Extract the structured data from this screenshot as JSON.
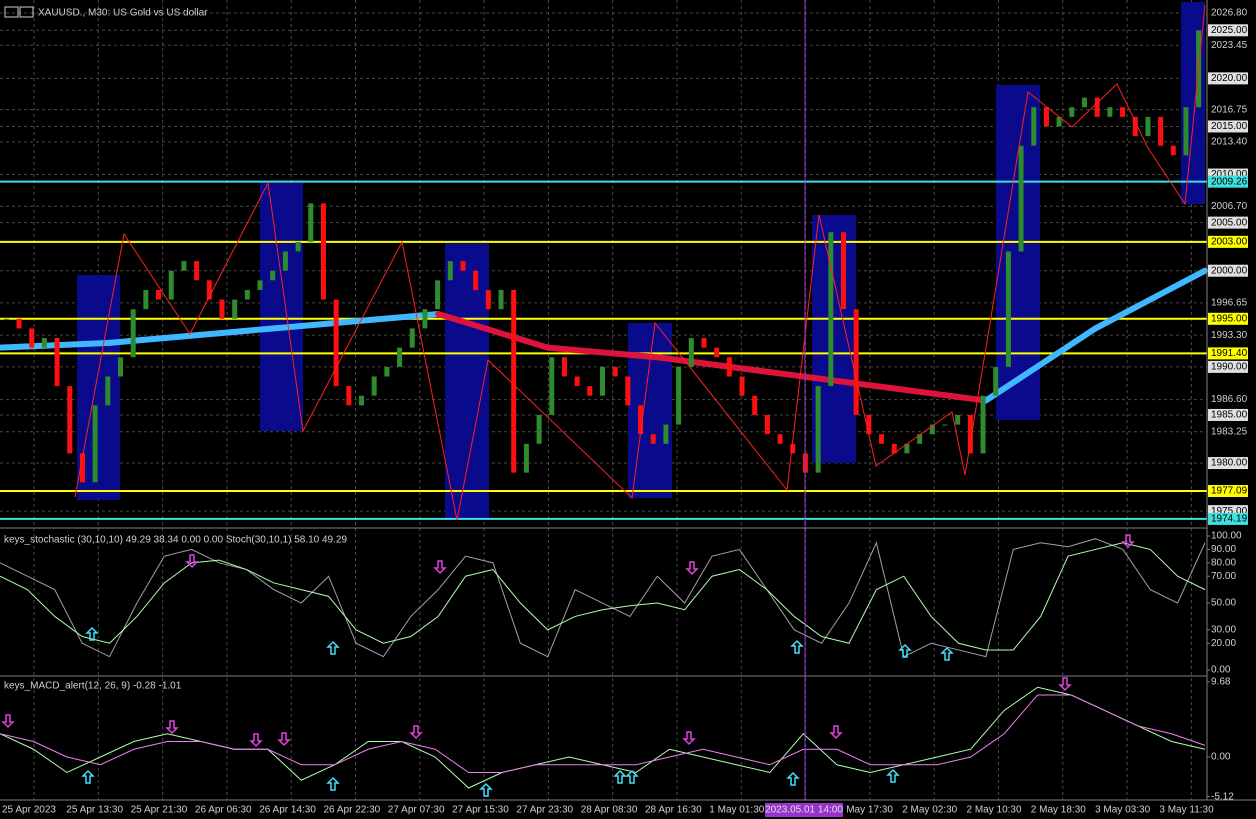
{
  "chart_data": [
    {
      "type": "candlestick",
      "title": "XAUUSD., M30: US Gold vs US dollar",
      "ylim": [
        1973.35,
        2028.15
      ],
      "yticks": [
        {
          "value": 2026.8,
          "label": "2026.80"
        },
        {
          "value": 2023.45,
          "label": "2023.45"
        },
        {
          "value": 2016.75,
          "label": "2016.75"
        },
        {
          "value": 2013.4,
          "label": "2013.40"
        },
        {
          "value": 2006.7,
          "label": "2006.70"
        },
        {
          "value": 1996.65,
          "label": "1996.65"
        },
        {
          "value": 1993.3,
          "label": "1993.30"
        },
        {
          "value": 1986.6,
          "label": "1986.60"
        },
        {
          "value": 1983.25,
          "label": "1983.25"
        }
      ],
      "boxed_ticks": [
        {
          "value": 2025,
          "label": "2025.00"
        },
        {
          "value": 2020,
          "label": "2020.00"
        },
        {
          "value": 2015,
          "label": "2015.00"
        },
        {
          "value": 2010,
          "label": "2010.00"
        },
        {
          "value": 2005,
          "label": "2005.00"
        },
        {
          "value": 2000,
          "label": "2000.00"
        },
        {
          "value": 1990,
          "label": "1990.00"
        },
        {
          "value": 1985,
          "label": "1985.00"
        },
        {
          "value": 1980,
          "label": "1980.00"
        },
        {
          "value": 1975,
          "label": "1975.00"
        }
      ],
      "levels": [
        {
          "value": 2009.26,
          "label": "2009.26",
          "color": "#40e0e0"
        },
        {
          "value": 2003,
          "label": "2003.00",
          "color": "#ffff00"
        },
        {
          "value": 1995,
          "label": "1995.00",
          "color": "#ffff00"
        },
        {
          "value": 1991.4,
          "label": "1991.40",
          "color": "#ffff00"
        },
        {
          "value": 1977.09,
          "label": "1977.09",
          "color": "#ffff00"
        },
        {
          "value": 1974.19,
          "label": "1974.19",
          "color": "#40e0e0"
        }
      ],
      "up_color": "#2e8b2e",
      "down_color": "#ff1010",
      "closes": [
        1995,
        1994,
        1992,
        1993,
        1988,
        1981,
        1978,
        1986,
        1989,
        1991,
        1996,
        1998,
        1997,
        2000,
        2001,
        1999,
        1997,
        1995,
        1997,
        1998,
        1999,
        2000,
        2002,
        2003,
        2007,
        1997,
        1988,
        1986,
        1987,
        1989,
        1990,
        1992,
        1994,
        1996,
        1999,
        2001,
        2000,
        1998,
        1996,
        1998,
        1979,
        1982,
        1985,
        1991,
        1989,
        1988,
        1987,
        1990,
        1989,
        1986,
        1983,
        1982,
        1984,
        1990,
        1993,
        1992,
        1991,
        1989,
        1987,
        1985,
        1983,
        1982,
        1981,
        1979,
        1988,
        2004,
        1996,
        1985,
        1983,
        1982,
        1981,
        1982,
        1983,
        1984,
        1984,
        1985,
        1981,
        1987,
        1990,
        2002,
        2013,
        2017,
        2015,
        2016,
        2017,
        2018,
        2016,
        2017,
        2016,
        2014,
        2016,
        2013,
        2012,
        2017,
        2025
      ],
      "moving_average": [
        1992,
        1992.5,
        1993.5,
        1994.5,
        1995.5,
        1992,
        1991,
        1989.5,
        1988,
        1986.5,
        1994,
        2000
      ],
      "ma_up_color": "#40b8ff",
      "ma_down_color": "#dc143c"
    },
    {
      "type": "line",
      "title": "keys_stochastic (30,10,10) 49.29 38.34 0.00 0.00 Stoch(30,10,1) 58.10 49.29",
      "ylim": [
        -3.7,
        104.5
      ],
      "yticks": [
        {
          "value": 100,
          "label": "100.00"
        },
        {
          "value": 90,
          "label": "90.00"
        },
        {
          "value": 80,
          "label": "80.00"
        },
        {
          "value": 70,
          "label": "70.00"
        },
        {
          "value": 50,
          "label": "50.00"
        },
        {
          "value": 30,
          "label": "30.00"
        },
        {
          "value": 20,
          "label": "20.00"
        },
        {
          "value": 0,
          "label": "0.00"
        }
      ],
      "series": [
        {
          "color": "#a0a0a8",
          "values": [
            80,
            70,
            60,
            20,
            10,
            50,
            85,
            90,
            80,
            75,
            60,
            50,
            70,
            20,
            10,
            40,
            60,
            85,
            80,
            20,
            10,
            60,
            50,
            40,
            70,
            50,
            85,
            90,
            60,
            30,
            20,
            50,
            95,
            10,
            20,
            15,
            10,
            90,
            95,
            92,
            98,
            90,
            60,
            50,
            95
          ]
        },
        {
          "color": "#b0ffb0",
          "values": [
            70,
            60,
            40,
            25,
            20,
            40,
            65,
            80,
            82,
            75,
            65,
            60,
            55,
            30,
            20,
            25,
            40,
            70,
            75,
            50,
            30,
            40,
            45,
            48,
            50,
            45,
            70,
            75,
            60,
            40,
            25,
            20,
            60,
            70,
            40,
            20,
            15,
            15,
            40,
            85,
            90,
            95,
            90,
            70,
            60
          ]
        }
      ]
    },
    {
      "type": "line",
      "title": "keys_MACD_alert(12, 26, 9) -0.28 -1.01",
      "ylim": [
        -5.55,
        10.32
      ],
      "yticks": [
        {
          "value": 9.68,
          "label": "9.68"
        },
        {
          "value": 0,
          "label": "0.00"
        },
        {
          "value": -5.12,
          "label": "-5.12"
        }
      ],
      "series": [
        {
          "color": "#b0ffb0",
          "values": [
            3,
            1,
            -2,
            0,
            2,
            3,
            2,
            1,
            1,
            -3,
            -1,
            2,
            2,
            0,
            -4,
            -2,
            -1,
            0,
            -1,
            -2,
            1,
            0,
            -1,
            -2,
            3,
            -1,
            -2,
            -1,
            0,
            1,
            6,
            9,
            8,
            6,
            4,
            2,
            1
          ]
        },
        {
          "color": "#ee82ee",
          "values": [
            3,
            2,
            0,
            -1,
            1,
            2,
            2,
            1,
            1,
            -1,
            -1,
            1,
            2,
            1,
            -2,
            -2,
            -1,
            -1,
            -1,
            -1,
            0,
            1,
            0,
            -1,
            1,
            1,
            -1,
            -1,
            -1,
            0,
            3,
            8,
            8,
            6,
            4,
            3,
            1.5
          ]
        }
      ]
    }
  ],
  "time_axis": {
    "labels": [
      "25 Apr 2023",
      "25 Apr 13:30",
      "25 Apr 21:30",
      "26 Apr 06:30",
      "26 Apr 14:30",
      "26 Apr 22:30",
      "27 Apr 07:30",
      "27 Apr 15:30",
      "27 Apr 23:30",
      "28 Apr 08:30",
      "28 Apr 16:30",
      "1 May 01:30",
      null,
      "1 May 17:30",
      "2 May 02:30",
      "2 May 10:30",
      "2 May 18:30",
      "3 May 03:30",
      "3 May 11:30"
    ],
    "cursor_label": "2023.05.01 14:00"
  }
}
